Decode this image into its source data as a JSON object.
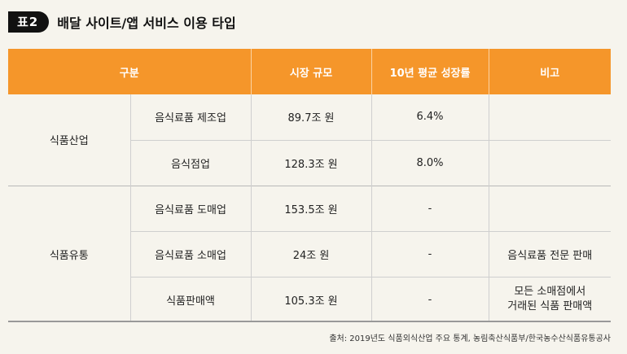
{
  "title": {
    "badge": "표2",
    "text": "배달 사이트/앱 서비스 이용 타입"
  },
  "table": {
    "headers": [
      "구분",
      "시장 규모",
      "10년 평균 성장률",
      "비고"
    ],
    "groups": [
      {
        "category": "식품산업",
        "rows": [
          {
            "item": "음식료품 제조업",
            "size": "89.7조 원",
            "growth": "6.4%",
            "note": ""
          },
          {
            "item": "음식점업",
            "size": "128.3조 원",
            "growth": "8.0%",
            "note": ""
          }
        ]
      },
      {
        "category": "식품유통",
        "rows": [
          {
            "item": "음식료품 도매업",
            "size": "153.5조 원",
            "growth": "-",
            "note": ""
          },
          {
            "item": "음식료품 소매업",
            "size": "24조 원",
            "growth": "-",
            "note": "음식료품 전문 판매"
          },
          {
            "item": "식품판매액",
            "size": "105.3조 원",
            "growth": "-",
            "note_line1": "모든 소매점에서",
            "note_line2": "거래된 식품 판매액"
          }
        ]
      }
    ]
  },
  "source": "출처: 2019년도 식품외식산업 주요 통계, 농림축산식품부/한국농수산식품유통공사"
}
